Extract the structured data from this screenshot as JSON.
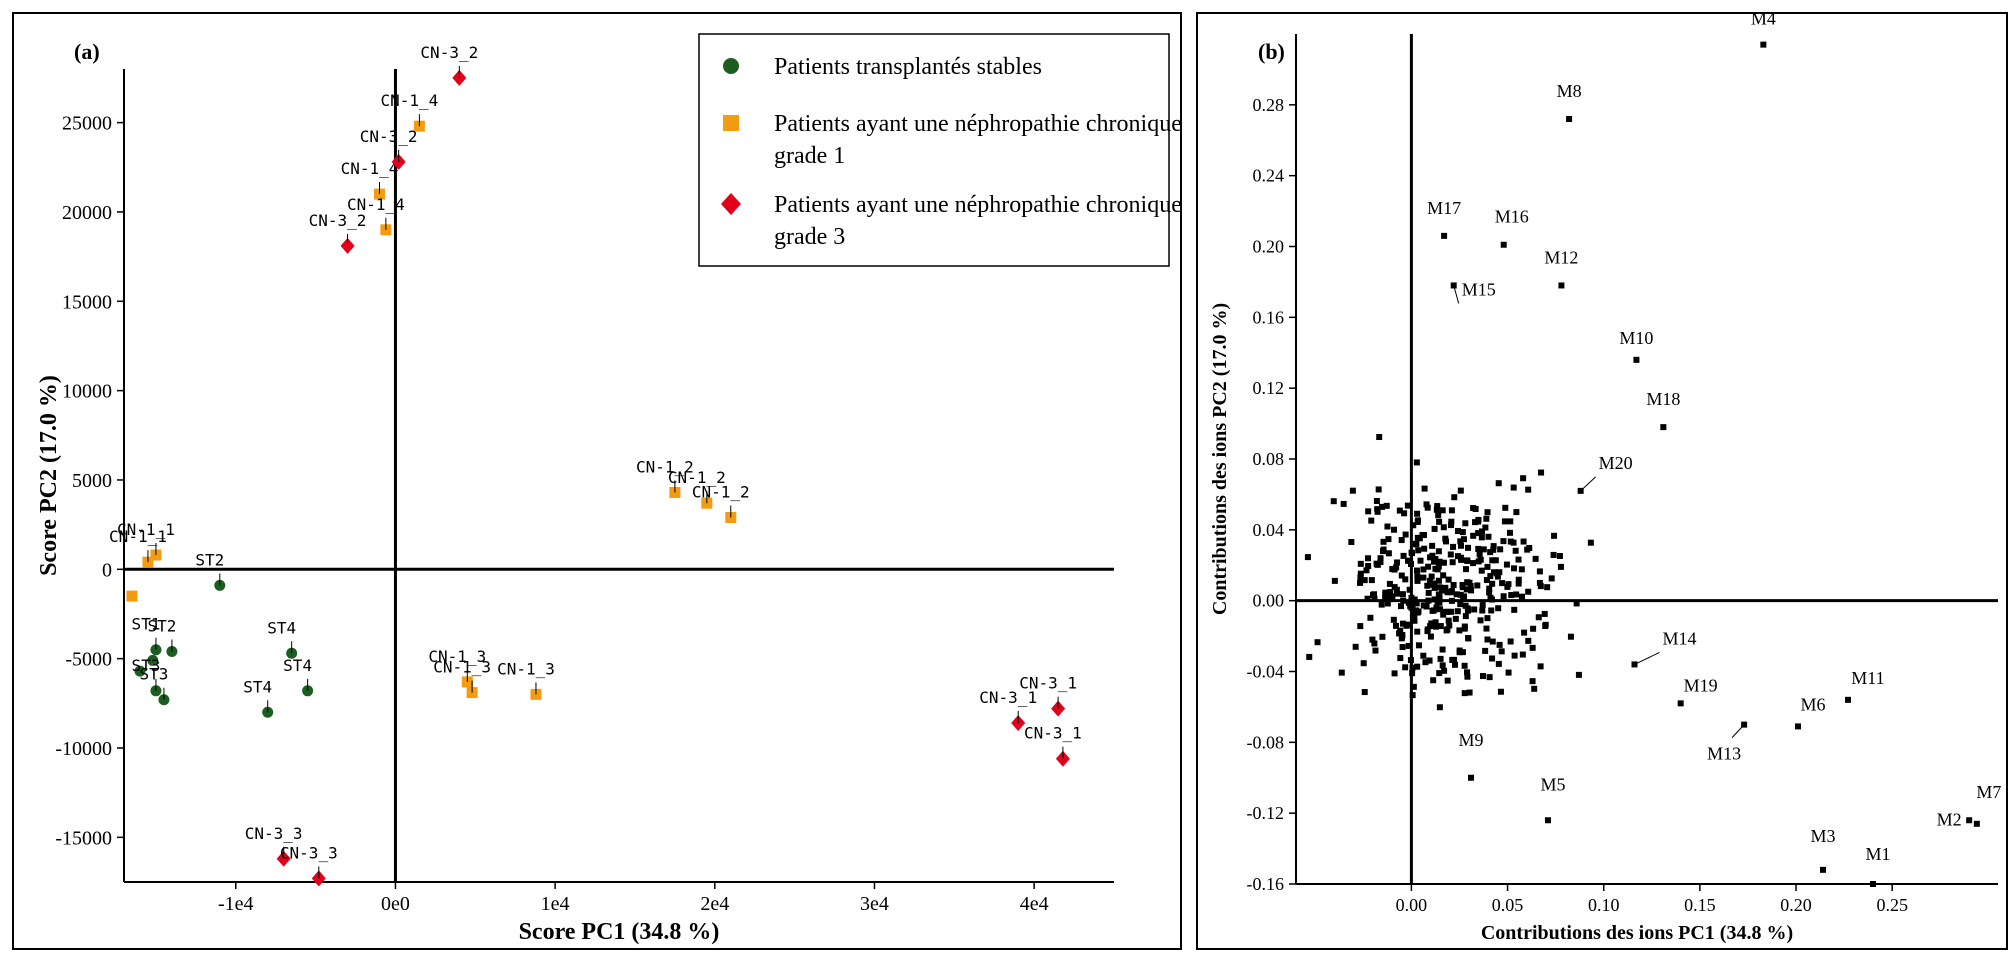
{
  "chart_data": [
    {
      "panel_label": "(a)",
      "type": "scatter",
      "xlabel": "Score PC1 (34.8 %)",
      "ylabel": "Score PC2 (17.0 %)",
      "xlim": [
        -17000,
        45000
      ],
      "ylim": [
        -17500,
        28000
      ],
      "xticks": [
        -10000,
        0,
        10000,
        20000,
        30000,
        40000
      ],
      "xtick_labels": [
        "-1e4",
        "0e0",
        "1e4",
        "2e4",
        "3e4",
        "4e4"
      ],
      "yticks": [
        -15000,
        -10000,
        -5000,
        0,
        5000,
        10000,
        15000,
        20000,
        25000
      ],
      "ytick_labels": [
        "-15000",
        "-10000",
        "-5000",
        "0",
        "5000",
        "10000",
        "15000",
        "20000",
        "25000"
      ],
      "legend_position": "top-right",
      "series": [
        {
          "name": "Patients transplantés stables",
          "color": "#1b5e20",
          "marker": "circle",
          "points": [
            {
              "x": -11000,
              "y": -900,
              "label": "ST2"
            },
            {
              "x": -15000,
              "y": -4500,
              "label": "ST1"
            },
            {
              "x": -14000,
              "y": -4600,
              "label": "ST2"
            },
            {
              "x": -15200,
              "y": -5100,
              "label": ""
            },
            {
              "x": -16000,
              "y": -5700,
              "label": ""
            },
            {
              "x": -14500,
              "y": -7300,
              "label": "ST3"
            },
            {
              "x": -15000,
              "y": -6800,
              "label": "ST3"
            },
            {
              "x": -6500,
              "y": -4700,
              "label": "ST4"
            },
            {
              "x": -5500,
              "y": -6800,
              "label": "ST4"
            },
            {
              "x": -8000,
              "y": -8000,
              "label": "ST4"
            }
          ]
        },
        {
          "name": "Patients ayant une néphropathie chronique grade 1",
          "color": "#f39c12",
          "marker": "square",
          "points": [
            {
              "x": 1500,
              "y": 24800,
              "label": "CN-1_4"
            },
            {
              "x": -1000,
              "y": 21000,
              "label": "CN-1_4"
            },
            {
              "x": -600,
              "y": 19000,
              "label": "CN-1_4"
            },
            {
              "x": -15000,
              "y": 800,
              "label": "CN-1_1"
            },
            {
              "x": -15500,
              "y": 400,
              "label": "CN-1_1"
            },
            {
              "x": -16500,
              "y": -1500,
              "label": ""
            },
            {
              "x": 17500,
              "y": 4300,
              "label": "CN-1_2"
            },
            {
              "x": 19500,
              "y": 3700,
              "label": "CN-1_2"
            },
            {
              "x": 21000,
              "y": 2900,
              "label": "CN-1_2"
            },
            {
              "x": 4500,
              "y": -6300,
              "label": "CN-1_3"
            },
            {
              "x": 4800,
              "y": -6900,
              "label": "CN-1_3"
            },
            {
              "x": 8800,
              "y": -7000,
              "label": "CN-1_3"
            }
          ]
        },
        {
          "name": "Patients ayant une néphropathie chronique grade 3",
          "color": "#e3001b",
          "marker": "diamond",
          "points": [
            {
              "x": 4000,
              "y": 27500,
              "label": "CN-3_2"
            },
            {
              "x": 200,
              "y": 22800,
              "label": "CN-3_2"
            },
            {
              "x": -3000,
              "y": 18100,
              "label": "CN-3_2"
            },
            {
              "x": 39000,
              "y": -8600,
              "label": "CN-3_1"
            },
            {
              "x": 41500,
              "y": -7800,
              "label": "CN-3_1"
            },
            {
              "x": 41800,
              "y": -10600,
              "label": "CN-3_1"
            },
            {
              "x": -7000,
              "y": -16200,
              "label": "CN-3_3"
            },
            {
              "x": -4800,
              "y": -17300,
              "label": "CN-3_3"
            }
          ]
        }
      ]
    },
    {
      "panel_label": "(b)",
      "type": "scatter",
      "xlabel": "Contributions des ions PC1 (34.8 %)",
      "ylabel": "Contributions des ions PC2 (17.0 %)",
      "xlim": [
        -0.06,
        0.305
      ],
      "ylim": [
        -0.16,
        0.32
      ],
      "xticks": [
        0,
        0.05,
        0.1,
        0.15,
        0.2,
        0.25
      ],
      "xtick_labels": [
        "0.00",
        "0.05",
        "0.10",
        "0.15",
        "0.20",
        "0.25"
      ],
      "yticks": [
        -0.16,
        -0.12,
        -0.08,
        -0.04,
        0,
        0.04,
        0.08,
        0.12,
        0.16,
        0.2,
        0.24,
        0.28
      ],
      "ytick_labels": [
        "-0.16",
        "-0.12",
        "-0.08",
        "-0.04",
        "0.00",
        "0.04",
        "0.08",
        "0.12",
        "0.16",
        "0.20",
        "0.24",
        "0.28"
      ],
      "color": "#000000",
      "marker": "square",
      "labeled_points": [
        {
          "label": "M4",
          "x": 0.183,
          "y": 0.314
        },
        {
          "label": "M8",
          "x": 0.082,
          "y": 0.272
        },
        {
          "label": "M17",
          "x": 0.017,
          "y": 0.206
        },
        {
          "label": "M16",
          "x": 0.048,
          "y": 0.201
        },
        {
          "label": "M12",
          "x": 0.078,
          "y": 0.178
        },
        {
          "label": "M15",
          "x": 0.022,
          "y": 0.178
        },
        {
          "label": "M10",
          "x": 0.117,
          "y": 0.136
        },
        {
          "label": "M18",
          "x": 0.131,
          "y": 0.098
        },
        {
          "label": "M20",
          "x": 0.088,
          "y": 0.062
        },
        {
          "label": "M14",
          "x": 0.116,
          "y": -0.036
        },
        {
          "label": "M19",
          "x": 0.14,
          "y": -0.058
        },
        {
          "label": "M11",
          "x": 0.227,
          "y": -0.056
        },
        {
          "label": "M6",
          "x": 0.201,
          "y": -0.071
        },
        {
          "label": "M13",
          "x": 0.173,
          "y": -0.07
        },
        {
          "label": "M9",
          "x": 0.031,
          "y": -0.1
        },
        {
          "label": "M5",
          "x": 0.071,
          "y": -0.124
        },
        {
          "label": "M3",
          "x": 0.214,
          "y": -0.152
        },
        {
          "label": "M1",
          "x": 0.24,
          "y": -0.16
        },
        {
          "label": "M2",
          "x": 0.29,
          "y": -0.124
        },
        {
          "label": "M7",
          "x": 0.294,
          "y": -0.126
        }
      ],
      "cluster_points_note": "approx. 400 unlabeled ions clustered around the origin"
    }
  ]
}
